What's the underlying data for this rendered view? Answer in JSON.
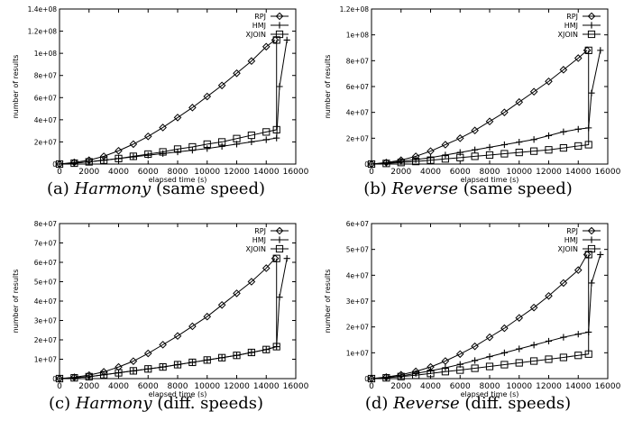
{
  "chart_data": [
    {
      "type": "line",
      "caption": {
        "prefix": "(a) ",
        "name": "Harmony",
        "suffix": " (same speed)"
      },
      "xlabel": "elapsed time (s)",
      "ylabel": "number of results",
      "xlim": [
        0,
        16000
      ],
      "ylim": [
        0,
        140000000
      ],
      "xticks": [
        "0",
        "2000",
        "4000",
        "6000",
        "8000",
        "10000",
        "12000",
        "14000",
        "16000"
      ],
      "yticks": [
        "0",
        "2e+07",
        "4e+07",
        "6e+07",
        "8e+07",
        "1e+08",
        "1.2e+08",
        "1.4e+08"
      ],
      "legend_position": "top-right",
      "series": [
        {
          "name": "RPJ",
          "marker": "diamond",
          "x": [
            0,
            1000,
            2000,
            3000,
            4000,
            5000,
            6000,
            7000,
            8000,
            9000,
            10000,
            11000,
            12000,
            13000,
            14000,
            14600
          ],
          "y": [
            0,
            1500000,
            3500000,
            7000000,
            12000000,
            18000000,
            25000000,
            33000000,
            42000000,
            51000000,
            61000000,
            71000000,
            82000000,
            93000000,
            106000000,
            112000000
          ]
        },
        {
          "name": "HMJ",
          "marker": "plus",
          "x": [
            0,
            1000,
            2000,
            3000,
            4000,
            5000,
            6000,
            7000,
            8000,
            9000,
            10000,
            11000,
            12000,
            13000,
            14000,
            14700,
            14900,
            15400
          ],
          "y": [
            0,
            800000,
            2000000,
            3500000,
            5000000,
            6500000,
            8000000,
            9500000,
            11000000,
            12500000,
            14000000,
            16000000,
            18000000,
            20000000,
            22000000,
            23500000,
            70000000,
            112000000
          ]
        },
        {
          "name": "XJOIN",
          "marker": "square",
          "x": [
            0,
            1000,
            2000,
            3000,
            4000,
            5000,
            6000,
            7000,
            8000,
            9000,
            10000,
            11000,
            12000,
            13000,
            14000,
            14700,
            14700
          ],
          "y": [
            0,
            800000,
            2000000,
            3500000,
            5000000,
            7000000,
            9000000,
            11000000,
            13500000,
            15500000,
            18000000,
            20000000,
            23000000,
            26000000,
            29000000,
            31000000,
            112000000
          ]
        }
      ]
    },
    {
      "type": "line",
      "caption": {
        "prefix": "(b) ",
        "name": "Reverse",
        "suffix": " (same speed)"
      },
      "xlabel": "elapsed time (s)",
      "ylabel": "number of results",
      "xlim": [
        0,
        16000
      ],
      "ylim": [
        0,
        120000000
      ],
      "xticks": [
        "0",
        "2000",
        "4000",
        "6000",
        "8000",
        "10000",
        "12000",
        "14000",
        "16000"
      ],
      "yticks": [
        "0",
        "2e+07",
        "4e+07",
        "6e+07",
        "8e+07",
        "1e+08",
        "1.2e+08"
      ],
      "legend_position": "top-right",
      "series": [
        {
          "name": "RPJ",
          "marker": "diamond",
          "x": [
            0,
            1000,
            2000,
            3000,
            4000,
            5000,
            6000,
            7000,
            8000,
            9000,
            10000,
            11000,
            12000,
            13000,
            14000,
            14600
          ],
          "y": [
            0,
            1200000,
            3000000,
            6000000,
            10000000,
            15000000,
            20000000,
            26000000,
            33000000,
            40000000,
            48000000,
            56000000,
            64000000,
            73000000,
            82000000,
            88000000
          ]
        },
        {
          "name": "HMJ",
          "marker": "plus",
          "x": [
            0,
            1000,
            2000,
            3000,
            4000,
            5000,
            6000,
            7000,
            8000,
            9000,
            10000,
            11000,
            12000,
            13000,
            14000,
            14700,
            14900,
            15500
          ],
          "y": [
            0,
            800000,
            2000000,
            3500000,
            5000000,
            7000000,
            9000000,
            11000000,
            13000000,
            15000000,
            17000000,
            19000000,
            22000000,
            25000000,
            27000000,
            28000000,
            55000000,
            88000000
          ]
        },
        {
          "name": "XJOIN",
          "marker": "square",
          "x": [
            0,
            1000,
            2000,
            3000,
            4000,
            5000,
            6000,
            7000,
            8000,
            9000,
            10000,
            11000,
            12000,
            13000,
            14000,
            14700,
            14700
          ],
          "y": [
            0,
            500000,
            1200000,
            2000000,
            3000000,
            4000000,
            5000000,
            6000000,
            7000000,
            8000000,
            9000000,
            10000000,
            11000000,
            12500000,
            14000000,
            15000000,
            88000000
          ]
        }
      ]
    },
    {
      "type": "line",
      "caption": {
        "prefix": "(c) ",
        "name": "Harmony",
        "suffix": " (diff. speeds)"
      },
      "xlabel": "elapsed time (s)",
      "ylabel": "number of results",
      "xlim": [
        0,
        16000
      ],
      "ylim": [
        0,
        80000000
      ],
      "xticks": [
        "0",
        "2000",
        "4000",
        "6000",
        "8000",
        "10000",
        "12000",
        "14000",
        "16000"
      ],
      "yticks": [
        "0",
        "1e+07",
        "2e+07",
        "3e+07",
        "4e+07",
        "5e+07",
        "6e+07",
        "7e+07",
        "8e+07"
      ],
      "legend_position": "top-right",
      "series": [
        {
          "name": "RPJ",
          "marker": "diamond",
          "x": [
            0,
            1000,
            2000,
            3000,
            4000,
            5000,
            6000,
            7000,
            8000,
            9000,
            10000,
            11000,
            12000,
            13000,
            14000,
            14600
          ],
          "y": [
            0,
            700000,
            1800000,
            3500000,
            6000000,
            9000000,
            13000000,
            17500000,
            22000000,
            27000000,
            32000000,
            38000000,
            44000000,
            50000000,
            57000000,
            62000000
          ]
        },
        {
          "name": "HMJ",
          "marker": "plus",
          "x": [
            0,
            1000,
            2000,
            3000,
            4000,
            5000,
            6000,
            7000,
            8000,
            9000,
            10000,
            11000,
            12000,
            13000,
            14000,
            14700,
            14900,
            15400
          ],
          "y": [
            0,
            400000,
            1000000,
            2000000,
            3000000,
            4000000,
            5000000,
            6000000,
            7200000,
            8400000,
            9600000,
            10800000,
            12000000,
            13500000,
            15000000,
            16500000,
            42000000,
            62000000
          ]
        },
        {
          "name": "XJOIN",
          "marker": "square",
          "x": [
            0,
            1000,
            2000,
            3000,
            4000,
            5000,
            6000,
            7000,
            8000,
            9000,
            10000,
            11000,
            12000,
            13000,
            14000,
            14700,
            14700
          ],
          "y": [
            0,
            400000,
            1000000,
            2000000,
            3000000,
            4000000,
            5000000,
            6000000,
            7200000,
            8400000,
            9600000,
            10800000,
            12000000,
            13500000,
            15000000,
            16500000,
            62000000
          ]
        }
      ]
    },
    {
      "type": "line",
      "caption": {
        "prefix": "(d) ",
        "name": "Reverse",
        "suffix": " (diff. speeds)"
      },
      "xlabel": "elapsed time (s)",
      "ylabel": "number of results",
      "xlim": [
        0,
        16000
      ],
      "ylim": [
        0,
        60000000
      ],
      "xticks": [
        "0",
        "2000",
        "4000",
        "6000",
        "8000",
        "10000",
        "12000",
        "14000",
        "16000"
      ],
      "yticks": [
        "0",
        "1e+07",
        "2e+07",
        "3e+07",
        "4e+07",
        "5e+07",
        "6e+07"
      ],
      "legend_position": "top-right",
      "series": [
        {
          "name": "RPJ",
          "marker": "diamond",
          "x": [
            0,
            1000,
            2000,
            3000,
            4000,
            5000,
            6000,
            7000,
            8000,
            9000,
            10000,
            11000,
            12000,
            13000,
            14000,
            14600
          ],
          "y": [
            0,
            600000,
            1500000,
            2800000,
            4500000,
            6800000,
            9500000,
            12500000,
            16000000,
            19500000,
            23500000,
            27500000,
            32000000,
            37000000,
            42000000,
            48000000
          ]
        },
        {
          "name": "HMJ",
          "marker": "plus",
          "x": [
            0,
            1000,
            2000,
            3000,
            4000,
            5000,
            6000,
            7000,
            8000,
            9000,
            10000,
            11000,
            12000,
            13000,
            14000,
            14700,
            14900,
            15500
          ],
          "y": [
            0,
            400000,
            1000000,
            2000000,
            3000000,
            4200000,
            5500000,
            7000000,
            8500000,
            10000000,
            11500000,
            13000000,
            14500000,
            16000000,
            17200000,
            18000000,
            37000000,
            48000000
          ]
        },
        {
          "name": "XJOIN",
          "marker": "square",
          "x": [
            0,
            1000,
            2000,
            3000,
            4000,
            5000,
            6000,
            7000,
            8000,
            9000,
            10000,
            11000,
            12000,
            13000,
            14000,
            14700,
            14700
          ],
          "y": [
            0,
            300000,
            800000,
            1300000,
            2000000,
            2700000,
            3300000,
            4000000,
            4700000,
            5400000,
            6100000,
            6800000,
            7500000,
            8200000,
            9000000,
            9500000,
            48000000
          ]
        }
      ]
    }
  ]
}
